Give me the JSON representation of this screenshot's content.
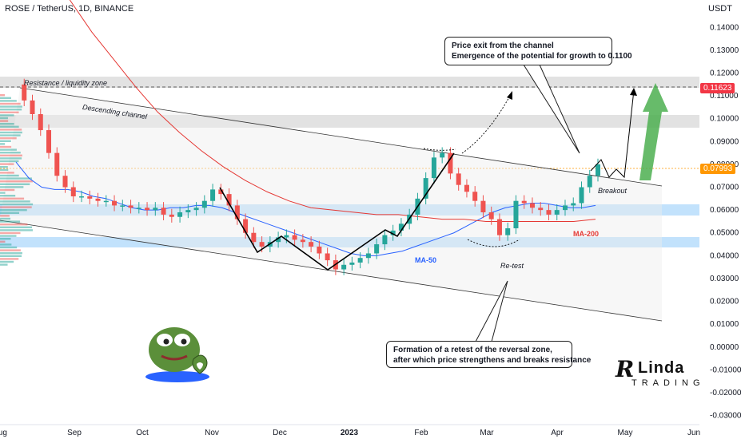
{
  "header": {
    "title": "ROSE / TetherUS, 1D, BINANCE",
    "unit": "USDT"
  },
  "colors": {
    "candle_up": "#26a69a",
    "candle_down": "#ef5350",
    "ma50": "#2962ff",
    "ma200": "#e53935",
    "zone": "#90caf9",
    "resistance_zone": "#d6d6d6",
    "arrow_green": "#4caf50"
  },
  "icons": {
    "mascot": "pepe-frog-heart-icon",
    "logo": "linda-trading-logo"
  },
  "labels": {
    "resistance": "Resistance / liquidity zone",
    "descending_channel": "Descending channel",
    "breakout": "Breakout",
    "ma50": "MA-50",
    "ma200": "MA-200",
    "retest": "Re-test"
  },
  "annotations": {
    "top": [
      "Price exit from the channel",
      "Emergence of the potential for growth to 0.1100"
    ],
    "bottom": [
      "Formation of a retest of the reversal zone,",
      "after which price strengthens and breaks resistance"
    ]
  },
  "logo": {
    "main": "Linda",
    "sub": "TRADING"
  },
  "chart_data": {
    "type": "line",
    "title": "ROSE / TetherUS, 1D, BINANCE",
    "xlabel": "",
    "ylabel": "USDT",
    "x_ticks": [
      "Aug",
      "Sep",
      "Oct",
      "Nov",
      "Dec",
      "2023",
      "Feb",
      "Mar",
      "Apr",
      "May",
      "Jun"
    ],
    "y_ticks": [
      0.14,
      0.13,
      0.12,
      0.11,
      0.1,
      0.09,
      0.08,
      0.07,
      0.06,
      0.05,
      0.04,
      0.03,
      0.02,
      0.01,
      -0.0,
      -0.01,
      -0.02,
      -0.03
    ],
    "ylim": [
      -0.034,
      0.152
    ],
    "price_markers": [
      {
        "label": "0.11623",
        "value": 0.11623,
        "color": "#f23645"
      },
      {
        "label": "0.07993",
        "value": 0.07993,
        "color": "#ff9800"
      }
    ],
    "series": [
      {
        "name": "Price",
        "values": [
          0.115,
          0.108,
          0.102,
          0.095,
          0.085,
          0.075,
          0.07,
          0.066,
          0.066,
          0.065,
          0.064,
          0.064,
          0.062,
          0.062,
          0.061,
          0.061,
          0.06,
          0.061,
          0.058,
          0.057,
          0.059,
          0.06,
          0.061,
          0.064,
          0.069,
          0.067,
          0.062,
          0.056,
          0.05,
          0.046,
          0.044,
          0.046,
          0.048,
          0.049,
          0.047,
          0.046,
          0.044,
          0.041,
          0.038,
          0.034,
          0.036,
          0.037,
          0.039,
          0.041,
          0.045,
          0.049,
          0.051,
          0.054,
          0.058,
          0.065,
          0.074,
          0.083,
          0.085,
          0.076,
          0.071,
          0.068,
          0.064,
          0.059,
          0.056,
          0.049,
          0.052,
          0.064,
          0.063,
          0.061,
          0.06,
          0.058,
          0.06,
          0.062,
          0.063,
          0.07,
          0.075,
          0.08
        ]
      },
      {
        "name": "MA-50",
        "values": [
          0.081,
          0.074,
          0.07,
          0.069,
          0.069,
          0.068,
          0.066,
          0.065,
          0.063,
          0.061,
          0.06,
          0.06,
          0.061,
          0.061,
          0.062,
          0.062,
          0.061,
          0.059,
          0.057,
          0.055,
          0.053,
          0.051,
          0.049,
          0.047,
          0.045,
          0.043,
          0.041,
          0.04,
          0.04,
          0.041,
          0.042,
          0.044,
          0.046,
          0.048,
          0.05,
          0.053,
          0.056,
          0.059,
          0.061,
          0.062,
          0.063,
          0.063,
          0.062,
          0.061,
          0.061,
          0.062
        ]
      },
      {
        "name": "MA-200",
        "values": [
          0.17,
          0.152,
          0.138,
          0.126,
          0.114,
          0.103,
          0.094,
          0.086,
          0.079,
          0.073,
          0.068,
          0.064,
          0.061,
          0.06,
          0.059,
          0.058,
          0.058,
          0.057,
          0.056,
          0.056,
          0.055,
          0.055,
          0.055,
          0.055,
          0.055,
          0.056
        ]
      }
    ],
    "channel": {
      "upper": [
        0.115,
        0.073
      ],
      "lower": [
        0.056,
        0.012
      ]
    }
  }
}
